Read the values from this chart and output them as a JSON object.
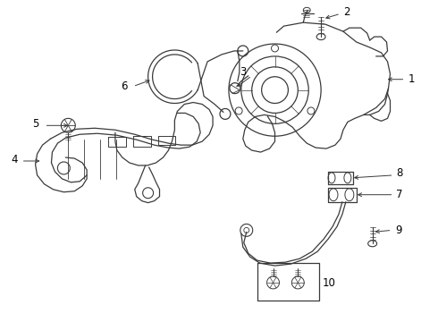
{
  "background_color": "#ffffff",
  "line_color": "#3a3a3a",
  "label_color": "#000000",
  "lw": 0.9
}
